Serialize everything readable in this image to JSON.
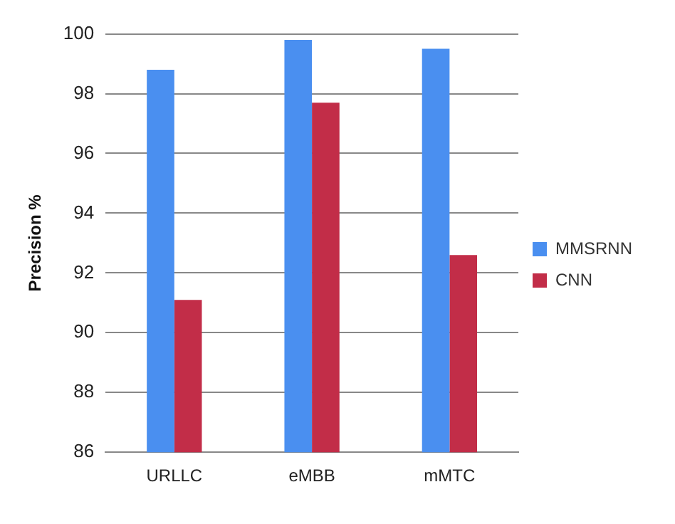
{
  "chart_data": {
    "type": "bar",
    "ylabel": "Precision %",
    "categories": [
      "URLLC",
      "eMBB",
      "mMTC"
    ],
    "series": [
      {
        "name": "MMSRNN",
        "color": "#4a8ff0",
        "values": [
          98.8,
          99.8,
          99.5
        ]
      },
      {
        "name": "CNN",
        "color": "#c22d48",
        "values": [
          91.1,
          97.7,
          92.6
        ]
      }
    ],
    "ylim": [
      86,
      100
    ],
    "yticks": [
      86,
      88,
      90,
      92,
      94,
      96,
      98,
      100
    ],
    "grid": "y",
    "legend": "right"
  }
}
